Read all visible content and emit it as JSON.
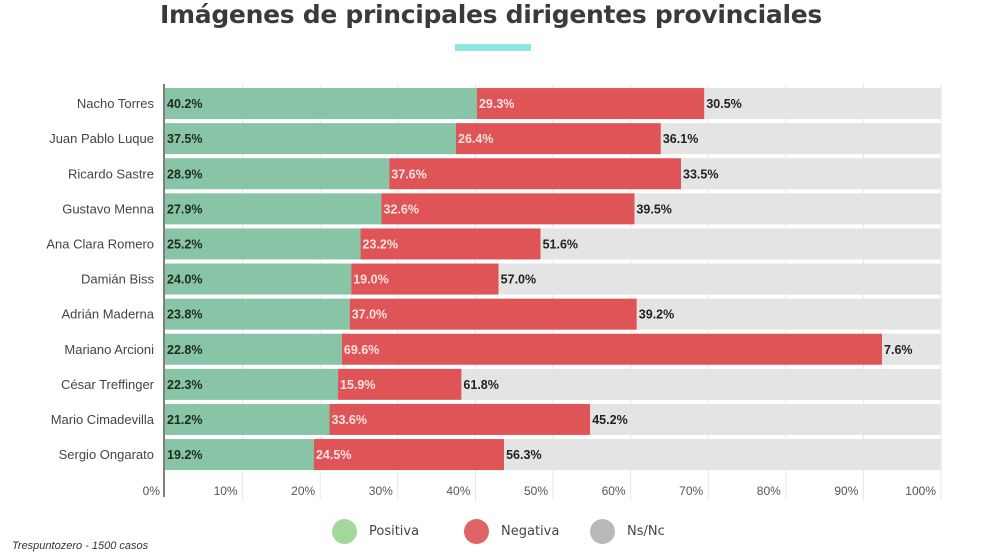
{
  "chart_data": {
    "type": "bar",
    "orientation": "horizontal",
    "stacked": true,
    "title": "Imágenes de principales dirigentes provinciales",
    "xlabel": "",
    "ylabel": "",
    "xlim": [
      0,
      100
    ],
    "x_ticks": [
      "0%",
      "10%",
      "20%",
      "30%",
      "40%",
      "50%",
      "60%",
      "70%",
      "80%",
      "90%",
      "100%"
    ],
    "grid": true,
    "legend_position": "bottom",
    "categories": [
      "Nacho Torres",
      "Juan Pablo Luque",
      "Ricardo Sastre",
      "Gustavo Menna",
      "Ana Clara Romero",
      "Damián Biss",
      "Adrián Maderna",
      "Mariano Arcioni",
      "César Treffinger",
      "Mario Cimadevilla",
      "Sergio Ongarato"
    ],
    "series": [
      {
        "name": "Positiva",
        "color": "#88c4a6",
        "legend_color": "#a3d79b",
        "label_color": "#1f2a22",
        "values": [
          40.2,
          37.5,
          28.9,
          27.9,
          25.2,
          24.0,
          23.8,
          22.8,
          22.3,
          21.2,
          19.2
        ],
        "labels": [
          "40.2%",
          "37.5%",
          "28.9%",
          "27.9%",
          "25.2%",
          "24.0%",
          "23.8%",
          "22.8%",
          "22.3%",
          "21.2%",
          "19.2%"
        ]
      },
      {
        "name": "Negativa",
        "color": "#df5457",
        "legend_color": "#e06365",
        "label_color": "#fbe3e3",
        "values": [
          29.3,
          26.4,
          37.6,
          32.6,
          23.2,
          19.0,
          37.0,
          69.6,
          15.9,
          33.6,
          24.5
        ],
        "labels": [
          "29.3%",
          "26.4%",
          "37.6%",
          "32.6%",
          "23.2%",
          "19.0%",
          "37.0%",
          "69.6%",
          "15.9%",
          "33.6%",
          "24.5%"
        ]
      },
      {
        "name": "Ns/Nc",
        "color": "#e4e4e4",
        "legend_color": "#b9b9b9",
        "label_color": "#222222",
        "values": [
          30.5,
          36.1,
          33.5,
          39.5,
          51.6,
          57.0,
          39.2,
          7.6,
          61.8,
          45.2,
          56.3
        ],
        "labels": [
          "30.5%",
          "36.1%",
          "33.5%",
          "39.5%",
          "51.6%",
          "57.0%",
          "39.2%",
          "7.6%",
          "61.8%",
          "45.2%",
          "56.3%"
        ]
      }
    ]
  },
  "header": {
    "title": "Imágenes de principales dirigentes provinciales",
    "accent_color": "#8fe8df"
  },
  "legend": [
    {
      "label": "Positiva",
      "color": "#a3d79b"
    },
    {
      "label": "Negativa",
      "color": "#e06365"
    },
    {
      "label": "Ns/Nc",
      "color": "#b9b9b9"
    }
  ],
  "footer": {
    "source": "Trespuntozero - 1500 casos"
  }
}
